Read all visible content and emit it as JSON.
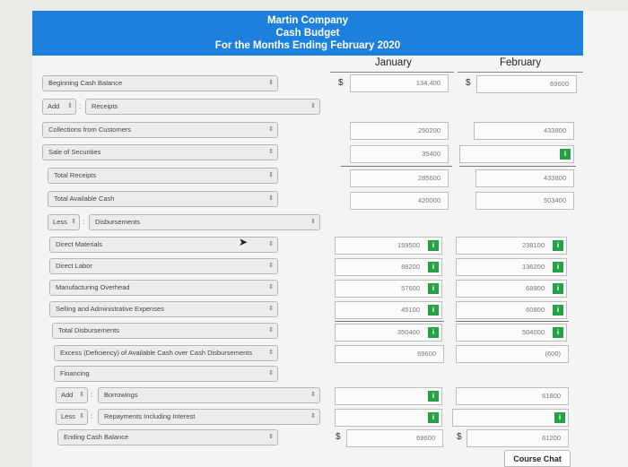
{
  "header": {
    "company": "Martin Company",
    "title": "Cash Budget",
    "period": "For the Months Ending February 2020"
  },
  "columns": {
    "january": "January",
    "february": "February"
  },
  "rows": {
    "beginning_cash": {
      "label": "Beginning Cash Balance",
      "jan": "134,400",
      "feb": "69600"
    },
    "add_operator": "Add",
    "receipts_header": "Receipts",
    "collections": {
      "label": "Collections from Customers",
      "jan": "250200",
      "feb": "433800"
    },
    "sale_securities": {
      "label": "Sale of Securities",
      "jan": "35400",
      "feb": ""
    },
    "total_receipts": {
      "label": "Total Receipts",
      "jan": "285600",
      "feb": "433800"
    },
    "total_available": {
      "label": "Total Available Cash",
      "jan": "420000",
      "feb": "503400"
    },
    "less_operator": "Less",
    "disbursements_header": "Disbursements",
    "direct_materials": {
      "label": "Direct Materials",
      "jan": "159500",
      "feb": "238100"
    },
    "direct_labor": {
      "label": "Direct Labor",
      "jan": "88200",
      "feb": "136200"
    },
    "manufacturing_overhead": {
      "label": "Manufacturing Overhead",
      "jan": "57600",
      "feb": "68900"
    },
    "selling_admin": {
      "label": "Selling and Administrative Expenses",
      "jan": "45100",
      "feb": "60800"
    },
    "total_disbursements": {
      "label": "Total Disbursements",
      "jan": "350400",
      "feb": "504000"
    },
    "excess": {
      "label": "Excess (Deficiency) of Available Cash over Cash Disbursements",
      "jan": "69600",
      "feb": "(600)"
    },
    "financing": {
      "label": "Financing"
    },
    "borrowings": {
      "operator": "Add",
      "label": "Borrowings",
      "jan": "",
      "feb": "61800"
    },
    "repayments": {
      "operator": "Less",
      "label": "Repayments Including Interest",
      "jan": "",
      "feb": ""
    },
    "ending_cash": {
      "label": "Ending Cash Balance",
      "jan": "69600",
      "feb": "61200"
    }
  },
  "symbols": {
    "currency": "$",
    "info": "i",
    "select_arrow": "⇕"
  },
  "footer": {
    "course_chat": "Course Chat"
  }
}
